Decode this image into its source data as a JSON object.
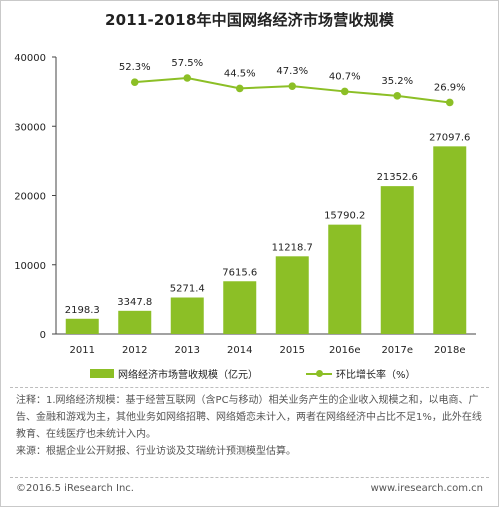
{
  "chart_data": {
    "type": "bar",
    "title": "2011-2018年中国网络经济市场营收规模",
    "categories": [
      "2011",
      "2012",
      "2013",
      "2014",
      "2015",
      "2016e",
      "2017e",
      "2018e"
    ],
    "y_ticks": [
      "40000",
      "30000",
      "20000",
      "10000",
      "0"
    ],
    "ylim": [
      0,
      40000
    ],
    "series": [
      {
        "name": "网络经济市场营收规模（亿元）",
        "type": "bar",
        "values": [
          2198.3,
          3347.8,
          5271.4,
          7615.6,
          11218.7,
          15790.2,
          21352.6,
          27097.6
        ],
        "labels": [
          "2198.3",
          "3347.8",
          "5271.4",
          "7615.6",
          "11218.7",
          "15790.2",
          "21352.6",
          "27097.6"
        ],
        "color": "#8cbf26"
      },
      {
        "name": "环比增长率（%）",
        "type": "line",
        "values": [
          null,
          52.3,
          57.5,
          44.5,
          47.3,
          40.7,
          35.2,
          26.9
        ],
        "labels": [
          "",
          "52.3%",
          "57.5%",
          "44.5%",
          "47.3%",
          "40.7%",
          "35.2%",
          "26.9%"
        ],
        "color": "#8cbf26"
      }
    ],
    "grid": false,
    "legend_position": "bottom"
  },
  "notes": {
    "line1": "注释：1.网络经济规模：基于经营互联网（含PC与移动）相关业务产生的企业收入规模之和，以电商、广告、金融和游戏为主，其他业务如网络招聘、网络婚恋未计入，两者在网络经济中占比不足1%，此外在线教育、在线医疗也未统计入内。",
    "line2": "来源：根据企业公开财报、行业访谈及艾瑞统计预测模型估算。"
  },
  "footer": {
    "copyright": "©2016.5 iResearch Inc.",
    "website": "www.iresearch.com.cn"
  }
}
